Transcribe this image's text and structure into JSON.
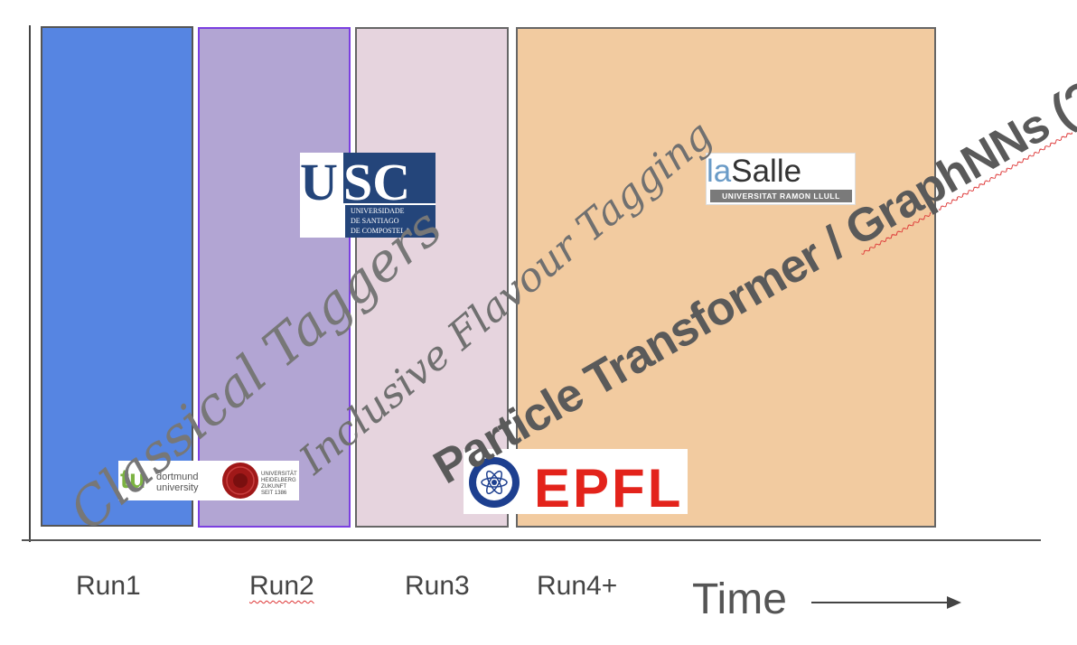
{
  "runs": [
    "Run1",
    "Run2",
    "Run3",
    "Run4+"
  ],
  "time_label": "Time",
  "eras": {
    "classical": "Classical Taggers",
    "inclusive": "Inclusive Flavour Tagging",
    "particle_prefix": "Particle Transformer / ",
    "particle_suffix": "GraphNNs (?)"
  },
  "logos": {
    "usc": {
      "letters": "USC",
      "line1": "UNIVERSIDADE",
      "line2": "DE SANTIAGO",
      "line3": "DE COMPOSTELA"
    },
    "lasalle": {
      "la": "la",
      "salle": "Salle",
      "sub": "UNIVERSITAT RAMON LLULL"
    },
    "dortmund": {
      "mark": "tu",
      "line1": "dortmund",
      "line2": "university"
    },
    "heidelberg": {
      "line1": "UNIVERSITÄT",
      "line2": "HEIDELBERG",
      "line3": "ZUKUNFT",
      "line4": "SEIT 1386"
    },
    "epfl": {
      "text": "EPFL"
    }
  },
  "colors": {
    "run1": "#5685e2",
    "run2": "#b2a5d3",
    "run3": "#e6d4de",
    "run4": "#f2cba0"
  }
}
